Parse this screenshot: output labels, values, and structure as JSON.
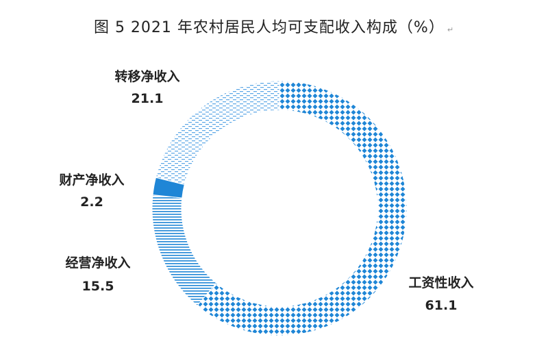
{
  "title": "图 5  2021 年农村居民人均可支配收入构成（%）",
  "paragraph_mark": "↵",
  "chart_data": {
    "type": "pie",
    "style": "donut",
    "title": "图 5  2021 年农村居民人均可支配收入构成（%）",
    "unit": "%",
    "segments": [
      {
        "name": "工资性收入",
        "value": 61.1,
        "label": "61.1",
        "pattern": "diamond",
        "color": "#1f86d6"
      },
      {
        "name": "经营净收入",
        "value": 15.5,
        "label": "15.5",
        "pattern": "hlines",
        "color": "#1f86d6"
      },
      {
        "name": "财产净收入",
        "value": 2.2,
        "label": "2.2",
        "pattern": "solid",
        "color": "#1f86d6"
      },
      {
        "name": "转移净收入",
        "value": 21.1,
        "label": "21.1",
        "pattern": "dashes",
        "color": "#1f86d6"
      }
    ],
    "start": "12 o'clock",
    "direction": "clockwise"
  }
}
